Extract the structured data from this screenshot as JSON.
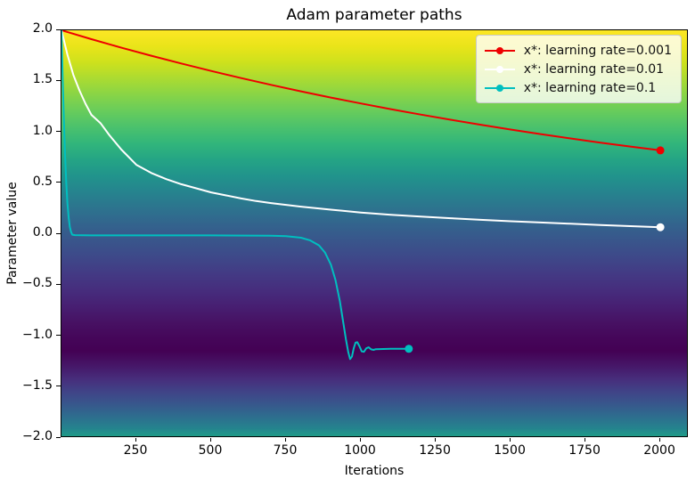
{
  "chart_data": {
    "type": "line",
    "title": "Adam parameter paths",
    "xlabel": "Iterations",
    "ylabel": "Parameter value",
    "xlim": [
      0,
      2095
    ],
    "ylim": [
      -2.0,
      2.0
    ],
    "grid": false,
    "x_ticks": [
      250,
      500,
      750,
      1000,
      1250,
      1500,
      1750,
      2000
    ],
    "x_tick_labels": [
      "250",
      "500",
      "750",
      "1000",
      "1250",
      "1500",
      "1750",
      "2000"
    ],
    "y_ticks": [
      2.0,
      1.5,
      1.0,
      0.5,
      0.0,
      -0.5,
      -1.0,
      -1.5,
      -2.0
    ],
    "y_tick_labels": [
      "2.0",
      "1.5",
      "1.0",
      "0.5",
      "0.0",
      "−0.5",
      "−1.0",
      "−1.5",
      "−2.0"
    ],
    "background": "vertical viridis gradient encoding loss value at each parameter value (bright yellow = high loss at 2.0, darkest purple near -1.1, teal at -2.0)",
    "background_gradient": [
      [
        "0%",
        "#fde725"
      ],
      [
        "4%",
        "#e9e419"
      ],
      [
        "8%",
        "#cde11d"
      ],
      [
        "12%",
        "#aadb32"
      ],
      [
        "16%",
        "#87d447"
      ],
      [
        "20%",
        "#67cc5c"
      ],
      [
        "24%",
        "#4ac16d"
      ],
      [
        "28%",
        "#31b57b"
      ],
      [
        "32%",
        "#24a485"
      ],
      [
        "36%",
        "#21938c"
      ],
      [
        "40%",
        "#26838e"
      ],
      [
        "44%",
        "#2d738e"
      ],
      [
        "48%",
        "#33638d"
      ],
      [
        "52%",
        "#39558b"
      ],
      [
        "56%",
        "#3e4889"
      ],
      [
        "60%",
        "#433a84"
      ],
      [
        "64%",
        "#462d7d"
      ],
      [
        "68%",
        "#471f72"
      ],
      [
        "72%",
        "#471163"
      ],
      [
        "76%",
        "#450659"
      ],
      [
        "79%",
        "#440154"
      ],
      [
        "83%",
        "#46196a"
      ],
      [
        "86%",
        "#472e7c"
      ],
      [
        "89%",
        "#404387"
      ],
      [
        "92%",
        "#38568c"
      ],
      [
        "95%",
        "#2e6c8e"
      ],
      [
        "98%",
        "#25838e"
      ],
      [
        "100%",
        "#1f9b88"
      ]
    ],
    "legend": {
      "position": "upper right",
      "entries": [
        {
          "label": "x*: learning rate=0.001",
          "color": "#ee0000"
        },
        {
          "label": "x*: learning rate=0.01",
          "color": "#ffffff"
        },
        {
          "label": "x*: learning rate=0.1",
          "color": "#00bfbf"
        }
      ]
    },
    "series": [
      {
        "name": "x*: learning rate=0.001",
        "color": "#ee0000",
        "marker": "o",
        "marker_at": "end",
        "final_value": 0.822,
        "points": [
          [
            0,
            2.0
          ],
          [
            100,
            1.913
          ],
          [
            200,
            1.829
          ],
          [
            300,
            1.75
          ],
          [
            400,
            1.674
          ],
          [
            500,
            1.601
          ],
          [
            600,
            1.531
          ],
          [
            700,
            1.465
          ],
          [
            800,
            1.401
          ],
          [
            900,
            1.34
          ],
          [
            1000,
            1.282
          ],
          [
            1100,
            1.226
          ],
          [
            1200,
            1.173
          ],
          [
            1300,
            1.122
          ],
          [
            1400,
            1.073
          ],
          [
            1500,
            1.026
          ],
          [
            1600,
            0.982
          ],
          [
            1700,
            0.939
          ],
          [
            1800,
            0.898
          ],
          [
            1900,
            0.859
          ],
          [
            2000,
            0.822
          ]
        ]
      },
      {
        "name": "x*: learning rate=0.01",
        "color": "#ffffff",
        "marker": "o",
        "marker_at": "end",
        "final_value": 0.068,
        "points": [
          [
            0,
            2.0
          ],
          [
            20,
            1.76
          ],
          [
            40,
            1.56
          ],
          [
            60,
            1.41
          ],
          [
            80,
            1.28
          ],
          [
            100,
            1.17
          ],
          [
            130,
            1.09
          ],
          [
            160,
            0.97
          ],
          [
            200,
            0.83
          ],
          [
            250,
            0.68
          ],
          [
            300,
            0.6
          ],
          [
            350,
            0.54
          ],
          [
            400,
            0.49
          ],
          [
            450,
            0.45
          ],
          [
            500,
            0.41
          ],
          [
            550,
            0.38
          ],
          [
            600,
            0.35
          ],
          [
            650,
            0.325
          ],
          [
            700,
            0.305
          ],
          [
            800,
            0.27
          ],
          [
            900,
            0.24
          ],
          [
            1000,
            0.212
          ],
          [
            1100,
            0.19
          ],
          [
            1200,
            0.172
          ],
          [
            1300,
            0.156
          ],
          [
            1400,
            0.141
          ],
          [
            1500,
            0.127
          ],
          [
            1600,
            0.114
          ],
          [
            1700,
            0.102
          ],
          [
            1800,
            0.09
          ],
          [
            1900,
            0.079
          ],
          [
            2000,
            0.068
          ]
        ]
      },
      {
        "name": "x*: learning rate=0.1",
        "color": "#00bfbf",
        "marker": "o",
        "marker_at": "end",
        "final_value": -1.125,
        "points": [
          [
            0,
            2.0
          ],
          [
            4,
            1.55
          ],
          [
            8,
            1.12
          ],
          [
            12,
            0.78
          ],
          [
            16,
            0.5
          ],
          [
            20,
            0.3
          ],
          [
            24,
            0.16
          ],
          [
            28,
            0.07
          ],
          [
            32,
            0.02
          ],
          [
            36,
            -0.005
          ],
          [
            45,
            -0.01
          ],
          [
            100,
            -0.012
          ],
          [
            300,
            -0.012
          ],
          [
            500,
            -0.012
          ],
          [
            700,
            -0.015
          ],
          [
            750,
            -0.02
          ],
          [
            800,
            -0.035
          ],
          [
            830,
            -0.06
          ],
          [
            860,
            -0.11
          ],
          [
            880,
            -0.18
          ],
          [
            900,
            -0.3
          ],
          [
            915,
            -0.45
          ],
          [
            930,
            -0.66
          ],
          [
            942,
            -0.88
          ],
          [
            950,
            -1.03
          ],
          [
            958,
            -1.16
          ],
          [
            964,
            -1.225
          ],
          [
            970,
            -1.2
          ],
          [
            976,
            -1.12
          ],
          [
            982,
            -1.065
          ],
          [
            988,
            -1.06
          ],
          [
            995,
            -1.1
          ],
          [
            1003,
            -1.15
          ],
          [
            1010,
            -1.155
          ],
          [
            1018,
            -1.12
          ],
          [
            1026,
            -1.11
          ],
          [
            1034,
            -1.13
          ],
          [
            1042,
            -1.135
          ],
          [
            1050,
            -1.128
          ],
          [
            1100,
            -1.125
          ],
          [
            1160,
            -1.125
          ]
        ]
      }
    ]
  }
}
